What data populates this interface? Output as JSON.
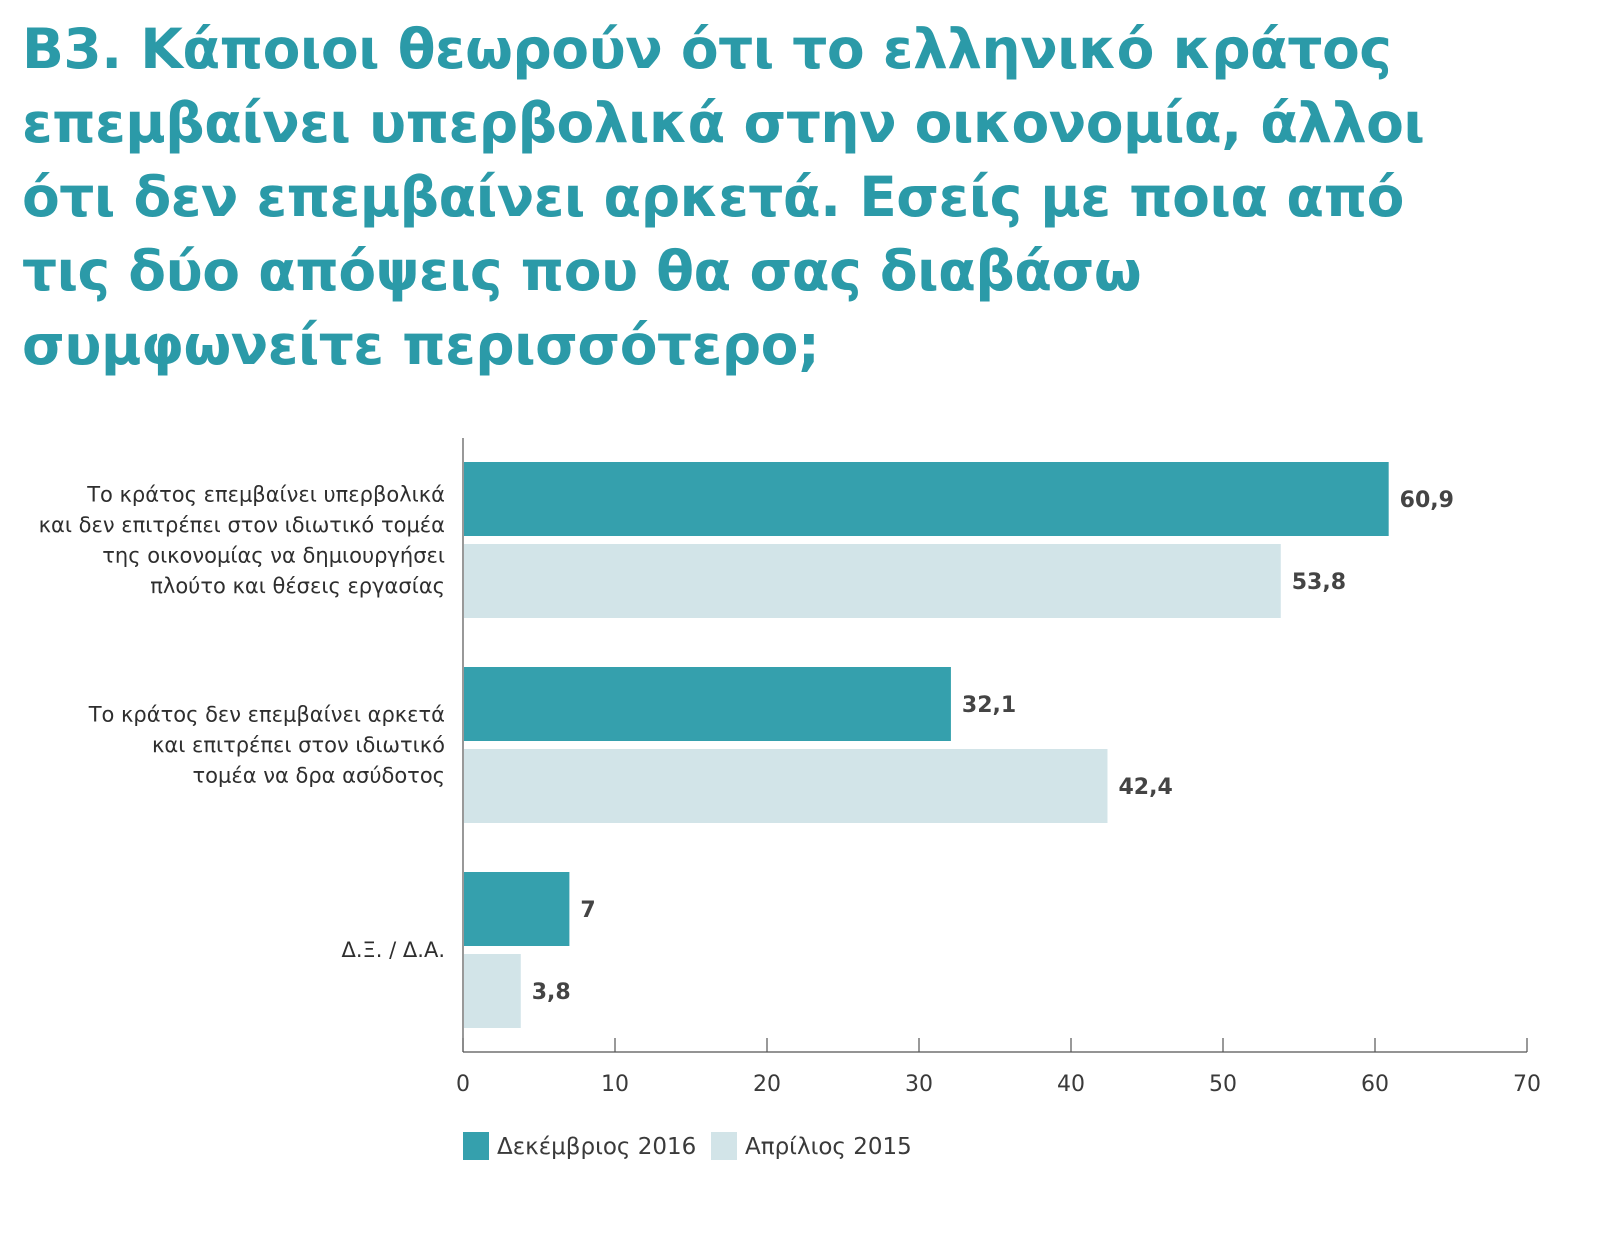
{
  "title": "B3. Κάποιοι θεωρούν ότι το ελληνικό κράτος επεμβαίνει υπερβολικά στην οικονομία, άλλοι ότι δεν επεμβαίνει αρκετά. Εσείς με ποια από τις δύο απόψεις που θα σας διαβάσω συμφωνείτε περισσότερο;",
  "colors": {
    "title": "#2b9aa8",
    "dec2016": "#35a0ad",
    "apr2015": "#d2e4e8",
    "axis": "#555555"
  },
  "chart_data": {
    "type": "bar",
    "orientation": "horizontal",
    "categories": [
      [
        "Το κράτος επεμβαίνει υπερβολικά",
        "και δεν επιτρέπει στον ιδιωτικό τομέα",
        "της οικονομίας να δημιουργήσει",
        "πλούτο και θέσεις εργασίας"
      ],
      [
        "Το κράτος δεν επεμβαίνει αρκετά",
        "και επιτρέπει στον ιδιωτικό",
        "τομέα να δρα ασύδοτος"
      ],
      [
        "Δ.Ξ. / Δ.Α."
      ]
    ],
    "series": [
      {
        "name": "Δεκέμβριος 2016",
        "values": [
          60.9,
          32.1,
          7
        ],
        "labels": [
          "60,9",
          "32,1",
          "7"
        ]
      },
      {
        "name": "Απρίλιος 2015",
        "values": [
          53.8,
          42.4,
          3.8
        ],
        "labels": [
          "53,8",
          "42,4",
          "3,8"
        ]
      }
    ],
    "xlim": [
      0,
      70
    ],
    "xticks": [
      0,
      10,
      20,
      30,
      40,
      50,
      60,
      70
    ],
    "grid": false,
    "legend_position": "bottom-left"
  }
}
